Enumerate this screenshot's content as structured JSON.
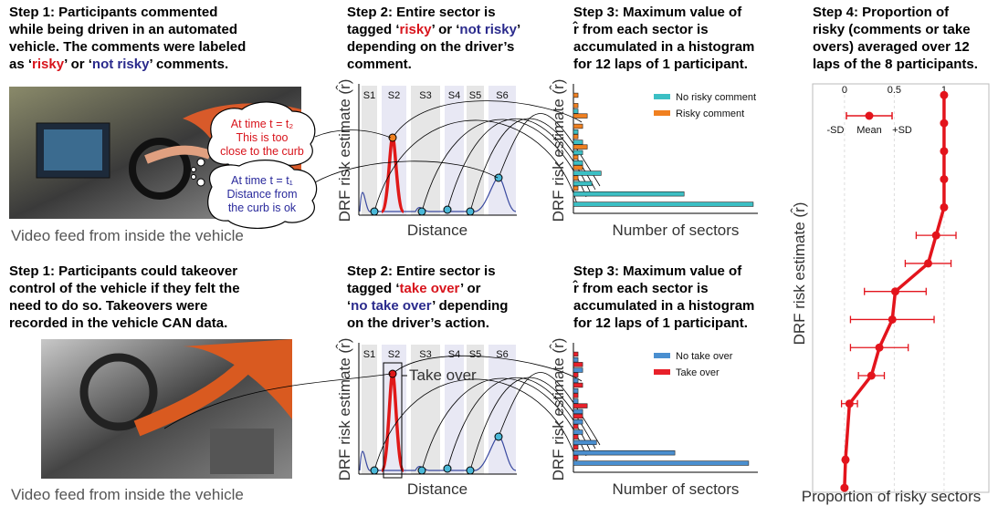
{
  "top": {
    "step1": [
      [
        "Step 1: Participants commented"
      ],
      [
        "while being driven in an automated"
      ],
      [
        "vehicle. The comments were labeled"
      ],
      [
        "as ‘",
        "risky",
        "’ or ‘",
        "not risky",
        "’ comments."
      ]
    ],
    "caption": "Video feed from inside the vehicle",
    "bubble_t2": [
      "At time t = t₂",
      "This is too",
      "close to the curb"
    ],
    "bubble_t1": [
      "At time t = t₁",
      "Distance from",
      "the curb is ok"
    ],
    "step2": [
      [
        "Step 2: Entire sector is"
      ],
      [
        "tagged ‘",
        "risky",
        "’ or ‘",
        "not risky",
        "’"
      ],
      [
        "depending on the driver’s"
      ],
      [
        "comment."
      ]
    ],
    "sectors": [
      "S1",
      "S2",
      "S3",
      "S4",
      "S5",
      "S6"
    ],
    "y_label": "DRF risk estimate (r̂)",
    "x_label": "Distance",
    "step3": [
      [
        "Step 3: Maximum value of"
      ],
      [
        "r̂ from each sector is"
      ],
      [
        "accumulated in a histogram"
      ],
      [
        "for 12 laps of 1 participant."
      ]
    ]
  },
  "bottom": {
    "step1": [
      [
        "Step 1: Participants could takeover"
      ],
      [
        "control of the vehicle if they felt the"
      ],
      [
        "need to do so. Takeovers were"
      ],
      [
        "recorded in the vehicle CAN data."
      ]
    ],
    "caption": "Video feed from inside the vehicle",
    "step2": [
      [
        "Step 2: Entire sector is"
      ],
      [
        "tagged  ‘",
        "take over",
        "’ or"
      ],
      [
        "‘",
        "no take over",
        "’ depending"
      ],
      [
        "on the driver’s action."
      ]
    ],
    "sectors": [
      "S1",
      "S2",
      "S3",
      "S4",
      "S5",
      "S6"
    ],
    "annotation": "Take over",
    "y_label": "DRF risk estimate (r̂)",
    "x_label": "Distance",
    "step3": [
      [
        "Step 3: Maximum value of"
      ],
      [
        "r̂ from each sector is"
      ],
      [
        "accumulated in a histogram"
      ],
      [
        "for 12 laps of 1 participant."
      ]
    ]
  },
  "step4": [
    [
      "Step 4: Proportion of"
    ],
    [
      "risky (comments or take"
    ],
    [
      "overs) averaged over 12"
    ],
    [
      "laps of the 8 participants."
    ]
  ],
  "chart_data": [
    {
      "type": "barh",
      "x_label": "Number of sectors",
      "y_label": "DRF risk estimate (r̂)",
      "categories": [
        null,
        null,
        null,
        null,
        null,
        null,
        null,
        null,
        null,
        null,
        null,
        null
      ],
      "xlim": [
        0,
        40
      ],
      "series": [
        {
          "name": "No risky comment",
          "color": "#3cbfc4",
          "values": [
            0,
            0,
            1,
            0,
            1,
            2,
            2,
            2,
            6,
            4,
            24,
            39
          ]
        },
        {
          "name": "Risky comment",
          "color": "#f08020",
          "values": [
            1,
            1,
            3,
            2,
            1,
            3,
            1,
            2,
            1,
            1,
            0,
            0
          ]
        }
      ]
    },
    {
      "type": "barh",
      "x_label": "Number of sectors",
      "y_label": "DRF risk estimate (r̂)",
      "categories": [
        null,
        null,
        null,
        null,
        null,
        null,
        null,
        null,
        null,
        null,
        null,
        null
      ],
      "xlim": [
        0,
        40
      ],
      "series": [
        {
          "name": "No take over",
          "color": "#4a8fd0",
          "values": [
            0,
            1,
            2,
            1,
            1,
            1,
            2,
            2,
            2,
            5,
            22,
            38
          ]
        },
        {
          "name": "Take over",
          "color": "#e8202a",
          "values": [
            1,
            2,
            1,
            2,
            1,
            3,
            2,
            1,
            1,
            1,
            1,
            0
          ]
        }
      ]
    },
    {
      "type": "errorbar",
      "x_label": "Proportion of risky sectors",
      "y_label": "DRF risk estimate (r̂)",
      "color": "#e3141c",
      "legend": {
        "minus": "-SD",
        "mean": "Mean",
        "plus": "+SD"
      },
      "xlim": [
        -0.32,
        1.45
      ],
      "ylim": [
        -0.16,
        14.4
      ],
      "xticks": [
        0,
        0.5,
        1
      ],
      "grid": true,
      "y": [
        14,
        13,
        12,
        11,
        10,
        9,
        8,
        7,
        6,
        5,
        4,
        3,
        1,
        0
      ],
      "x": [
        1.0,
        1.0,
        1.0,
        1.0,
        1.0,
        0.92,
        0.84,
        0.51,
        0.48,
        0.35,
        0.27,
        0.05,
        0.01,
        0.0
      ],
      "err": [
        0.01,
        0.01,
        0.01,
        0.01,
        0.01,
        0.2,
        0.23,
        0.31,
        0.42,
        0.29,
        0.13,
        0.08,
        0.02,
        0.01
      ]
    }
  ]
}
